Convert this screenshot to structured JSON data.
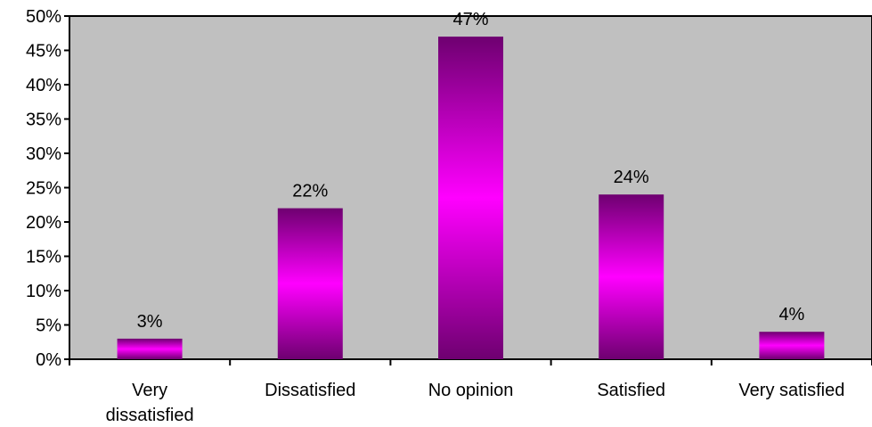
{
  "chart_data": {
    "type": "bar",
    "categories": [
      [
        "Very",
        "dissatisfied"
      ],
      [
        "Dissatisfied"
      ],
      [
        "No opinion"
      ],
      [
        "Satisfied"
      ],
      [
        "Very satisfied"
      ]
    ],
    "values": [
      3,
      22,
      47,
      24,
      4
    ],
    "data_labels": [
      "3%",
      "22%",
      "47%",
      "24%",
      "4%"
    ],
    "y_ticks": [
      "0%",
      "5%",
      "10%",
      "15%",
      "20%",
      "25%",
      "30%",
      "35%",
      "40%",
      "45%",
      "50%"
    ],
    "ylim": [
      0,
      50
    ],
    "legend": "none",
    "grid": false,
    "colors": {
      "plot_background": "#c0c0c0",
      "bar_edge": "#6e0070",
      "bar_center": "#ff00ff",
      "axis": "#000000"
    }
  }
}
